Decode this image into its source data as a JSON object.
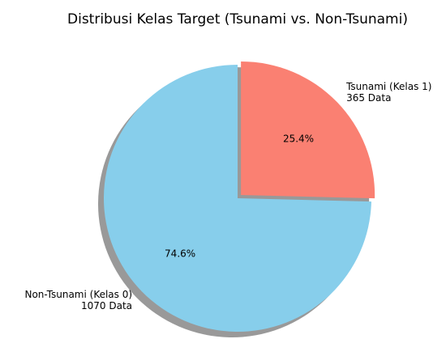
{
  "chart_data": {
    "type": "pie",
    "title": "Distribusi Kelas Target (Tsunami vs. Non-Tsunami)",
    "categories": [
      [
        "Non-Tsunami (Kelas 0)",
        "1070 Data"
      ],
      [
        "Tsunami (Kelas 1)",
        "365 Data"
      ]
    ],
    "values": [
      74.6,
      25.4
    ],
    "value_labels": [
      "74.6%",
      "25.4%"
    ],
    "colors": [
      "#87ceeb",
      "#fa8072"
    ],
    "explode": [
      0,
      0.05
    ],
    "startangle": 90,
    "shadow": true
  }
}
